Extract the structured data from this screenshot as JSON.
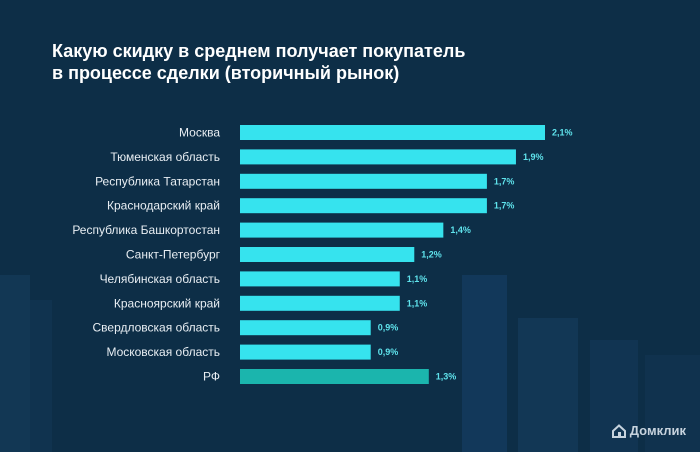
{
  "title_line1": "Какую скидку в среднем получает покупатель",
  "title_line2": "в процессе сделки (вторичный рынок)",
  "logo": {
    "text": "Домклик",
    "icon": "house-icon"
  },
  "colors": {
    "bar": "#36e3ee",
    "bar_highlight": "#1bb5ad",
    "background": "#0d2e47"
  },
  "chart_data": {
    "type": "bar",
    "orientation": "horizontal",
    "title": "Какую скидку в среднем получает покупатель в процессе сделки (вторичный рынок)",
    "categories": [
      "Москва",
      "Тюменская область",
      "Республика Татарстан",
      "Краснодарский край",
      "Республика Башкортостан",
      "Санкт-Петербург",
      "Челябинская область",
      "Красноярский край",
      "Свердловская область",
      "Московская область",
      "РФ"
    ],
    "values": [
      2.1,
      1.9,
      1.7,
      1.7,
      1.4,
      1.2,
      1.1,
      1.1,
      0.9,
      0.9,
      1.3
    ],
    "value_labels": [
      "2,1%",
      "1,9%",
      "1,7%",
      "1,7%",
      "1,4%",
      "1,2%",
      "1,1%",
      "1,1%",
      "0,9%",
      "0,9%",
      "1,3%"
    ],
    "highlight_index": 10,
    "xlabel": "",
    "ylabel": "",
    "xlim": [
      0,
      2.1
    ],
    "grid": false,
    "legend": "none"
  }
}
